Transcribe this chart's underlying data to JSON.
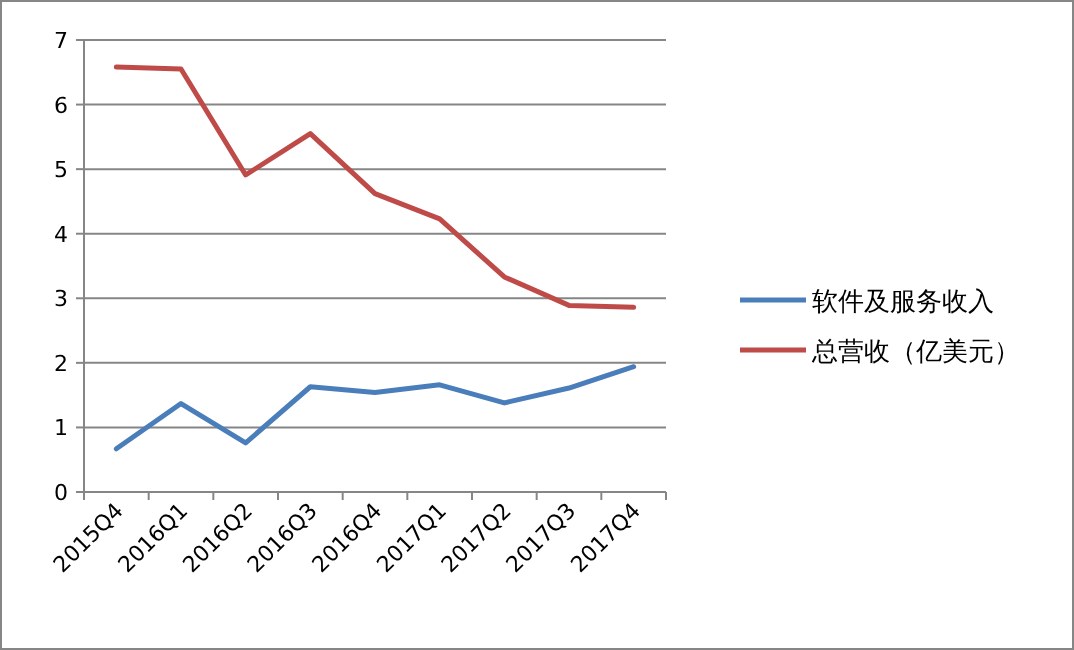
{
  "chart_data": {
    "type": "line",
    "categories": [
      "2015Q4",
      "2016Q1",
      "2016Q2",
      "2016Q3",
      "2016Q4",
      "2017Q1",
      "2017Q2",
      "2017Q3",
      "2017Q4"
    ],
    "series": [
      {
        "name": "软件及服务收入",
        "color": "#4a7ebb",
        "values": [
          0.67,
          1.37,
          0.76,
          1.63,
          1.54,
          1.66,
          1.38,
          1.61,
          1.94
        ]
      },
      {
        "name": "总营收（亿美元）",
        "color": "#be4b48",
        "values": [
          6.58,
          6.55,
          4.91,
          5.55,
          4.62,
          4.23,
          3.33,
          2.89,
          2.86
        ]
      }
    ],
    "ylim": [
      0,
      7
    ],
    "yticks": [
      0,
      1,
      2,
      3,
      4,
      5,
      6,
      7
    ],
    "grid": "y",
    "legend": "right",
    "marker": "none",
    "line_style": "solid"
  }
}
